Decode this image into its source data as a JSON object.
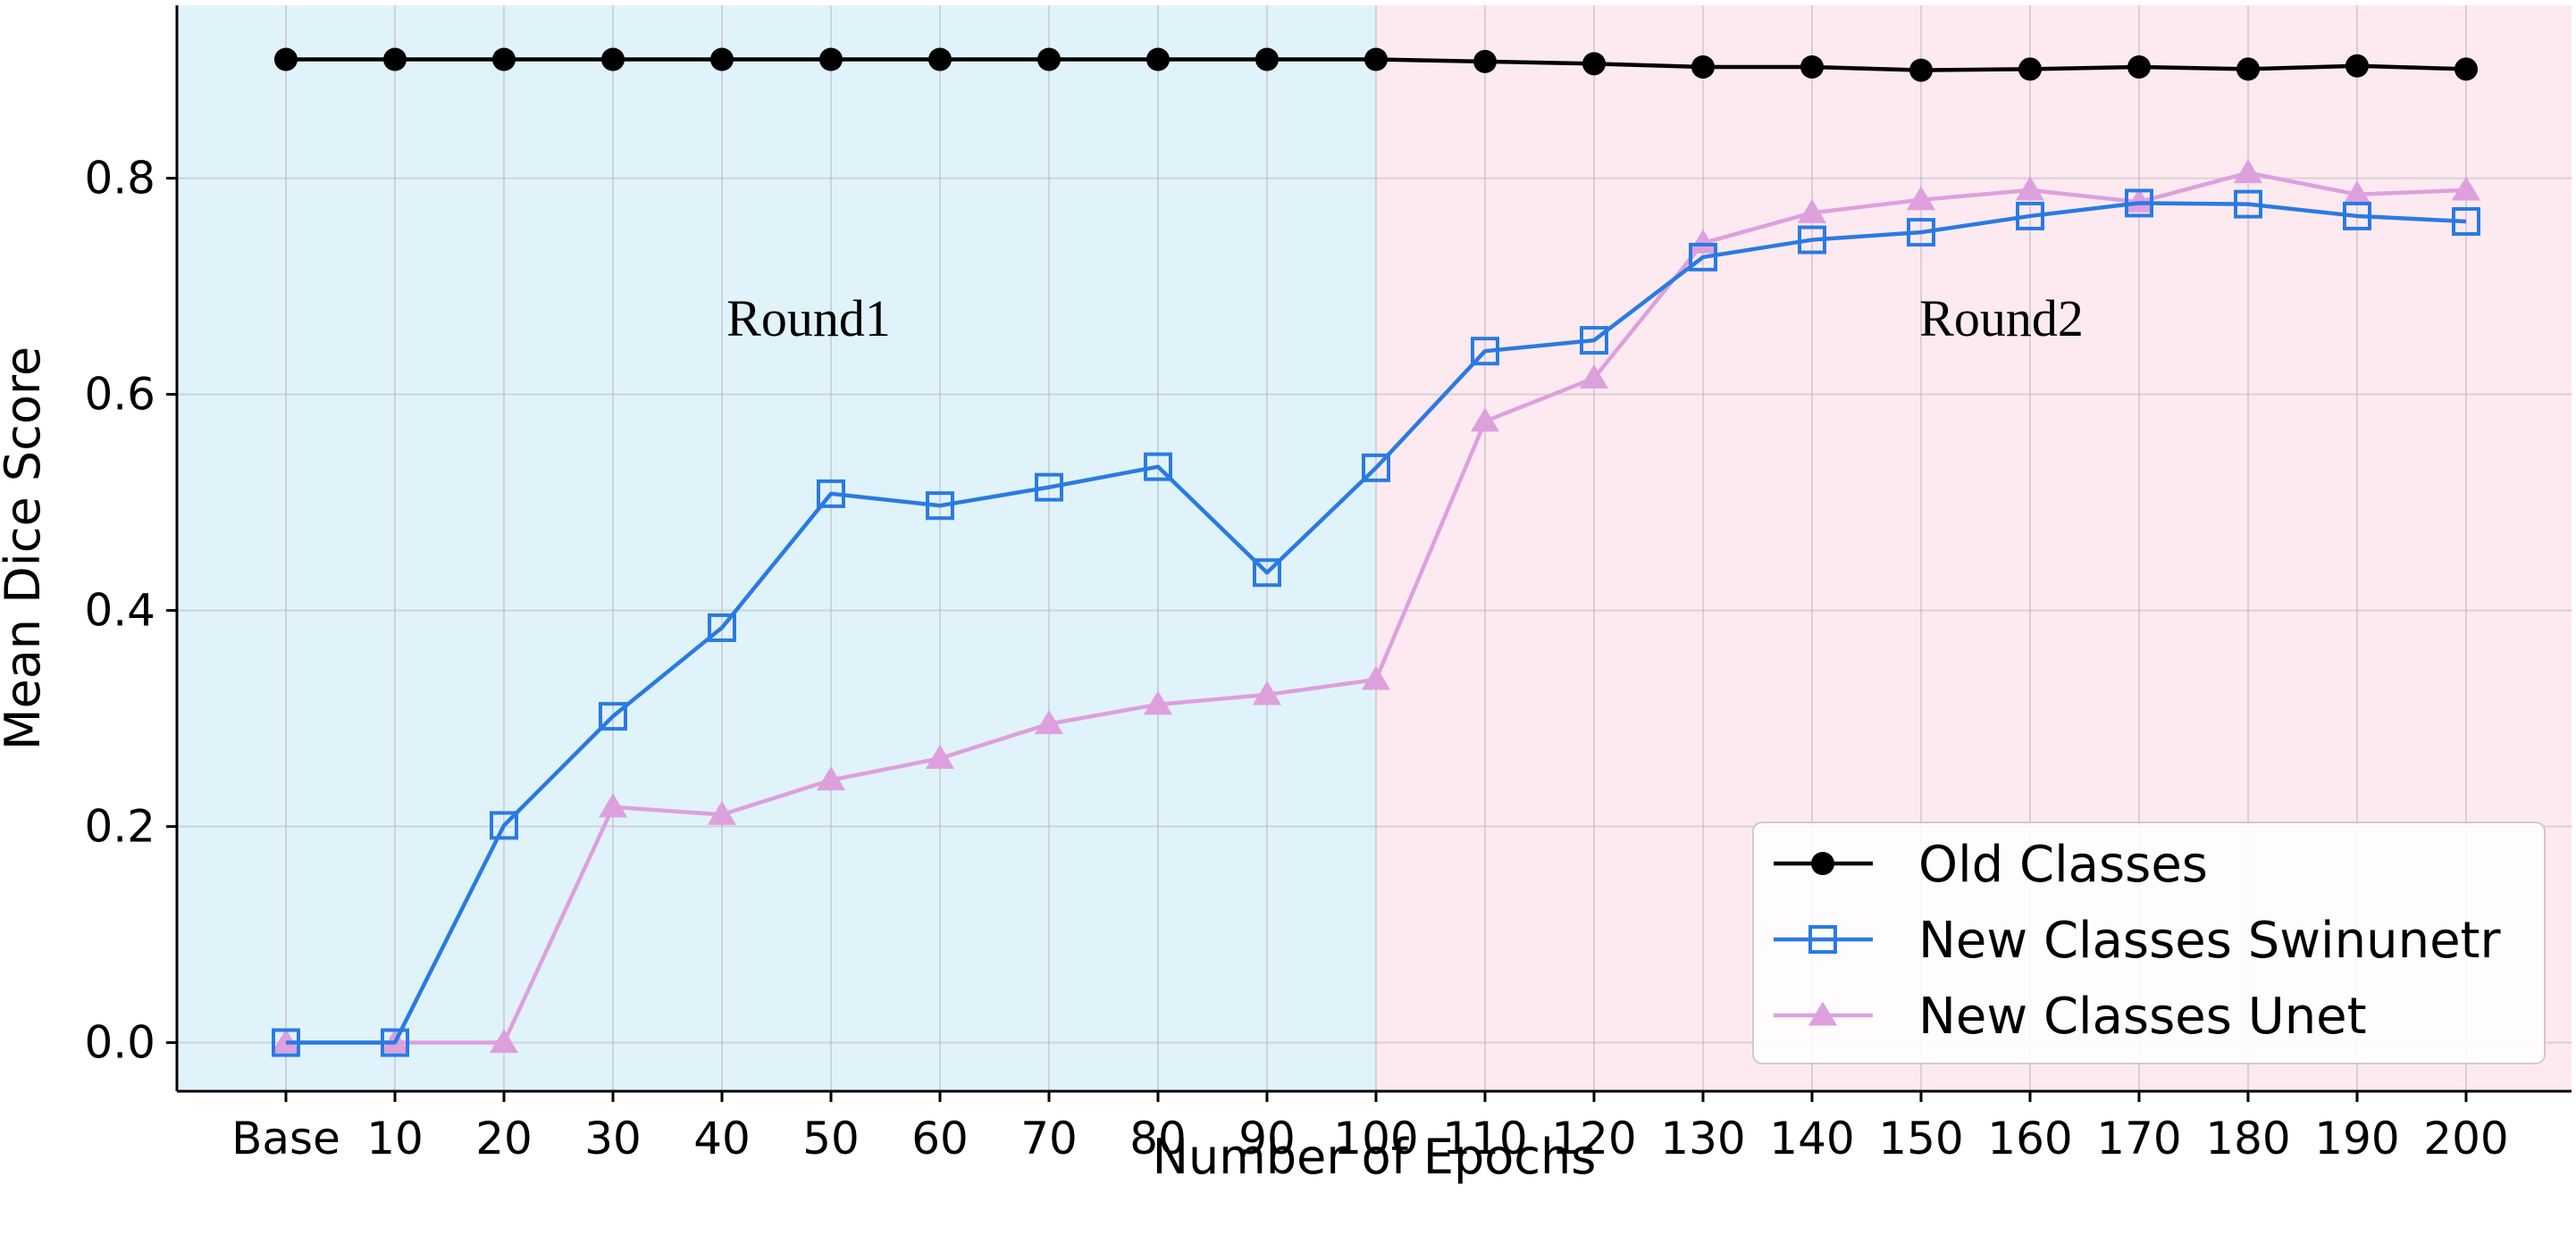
{
  "chart_data": {
    "type": "line",
    "title": "",
    "xlabel": "Number of Epochs",
    "ylabel": "Mean Dice Score",
    "categories": [
      "Base",
      "10",
      "20",
      "30",
      "40",
      "50",
      "60",
      "70",
      "80",
      "90",
      "100",
      "110",
      "120",
      "130",
      "140",
      "150",
      "160",
      "170",
      "180",
      "190",
      "200"
    ],
    "ylim": [
      -0.045,
      0.96
    ],
    "yticks": [
      0.0,
      0.2,
      0.4,
      0.6,
      0.8
    ],
    "ytick_labels": [
      "0.0",
      "0.2",
      "0.4",
      "0.6",
      "0.8"
    ],
    "grid": true,
    "legend_position": "bottom-right",
    "regions": [
      {
        "label": "Round1",
        "from": "start",
        "to": "100",
        "color": "#e0f3fb"
      },
      {
        "label": "Round2",
        "from": "100",
        "to": "end",
        "color": "#fdeaf1"
      }
    ],
    "series": [
      {
        "name": "Old Classes",
        "color": "#000000",
        "marker": "circle",
        "values": [
          0.91,
          0.91,
          0.91,
          0.91,
          0.91,
          0.91,
          0.91,
          0.91,
          0.91,
          0.91,
          0.91,
          0.908,
          0.906,
          0.903,
          0.903,
          0.9,
          0.901,
          0.903,
          0.901,
          0.904,
          0.901
        ]
      },
      {
        "name": "New Classes Swinunetr",
        "color": "#2a7ae4",
        "marker": "square",
        "values": [
          0.0,
          0.0,
          0.201,
          0.302,
          0.384,
          0.508,
          0.497,
          0.514,
          0.533,
          0.435,
          0.532,
          0.64,
          0.65,
          0.727,
          0.743,
          0.75,
          0.765,
          0.777,
          0.776,
          0.765,
          0.76
        ]
      },
      {
        "name": "New Classes Unet",
        "color": "#dda0dd",
        "marker": "triangle",
        "values": [
          0.0,
          0.0,
          0.0,
          0.218,
          0.211,
          0.243,
          0.263,
          0.295,
          0.313,
          0.322,
          0.336,
          0.575,
          0.615,
          0.74,
          0.768,
          0.78,
          0.789,
          0.778,
          0.805,
          0.785,
          0.789
        ]
      }
    ]
  }
}
